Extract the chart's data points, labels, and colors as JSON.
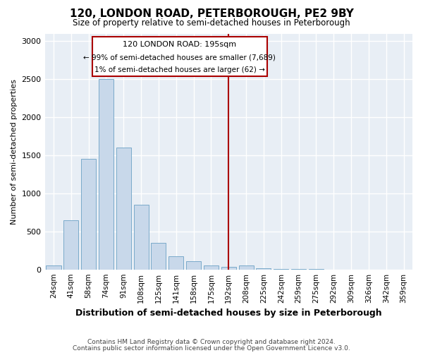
{
  "title": "120, LONDON ROAD, PETERBOROUGH, PE2 9BY",
  "subtitle": "Size of property relative to semi-detached houses in Peterborough",
  "xlabel": "Distribution of semi-detached houses by size in Peterborough",
  "ylabel": "Number of semi-detached properties",
  "categories": [
    "24sqm",
    "41sqm",
    "58sqm",
    "74sqm",
    "91sqm",
    "108sqm",
    "125sqm",
    "141sqm",
    "158sqm",
    "175sqm",
    "192sqm",
    "208sqm",
    "225sqm",
    "242sqm",
    "259sqm",
    "275sqm",
    "292sqm",
    "309sqm",
    "326sqm",
    "342sqm",
    "359sqm"
  ],
  "values": [
    50,
    650,
    1450,
    2500,
    1600,
    850,
    350,
    175,
    110,
    50,
    30,
    50,
    20,
    10,
    5,
    5,
    0,
    0,
    0,
    0,
    0
  ],
  "bar_color": "#c8d8ea",
  "bar_edge_color": "#7aaaca",
  "vline_index": 10,
  "marker_label": "120 LONDON ROAD: 195sqm",
  "annotation_line1": "← 99% of semi-detached houses are smaller (7,689)",
  "annotation_line2": "1% of semi-detached houses are larger (62) →",
  "annotation_box_color": "#aa0000",
  "vline_color": "#aa0000",
  "ylim": [
    0,
    3100
  ],
  "yticks": [
    0,
    500,
    1000,
    1500,
    2000,
    2500,
    3000
  ],
  "background_color": "#ffffff",
  "plot_bg_color": "#e8eef5",
  "grid_color": "#ffffff",
  "footer_line1": "Contains HM Land Registry data © Crown copyright and database right 2024.",
  "footer_line2": "Contains public sector information licensed under the Open Government Licence v3.0."
}
